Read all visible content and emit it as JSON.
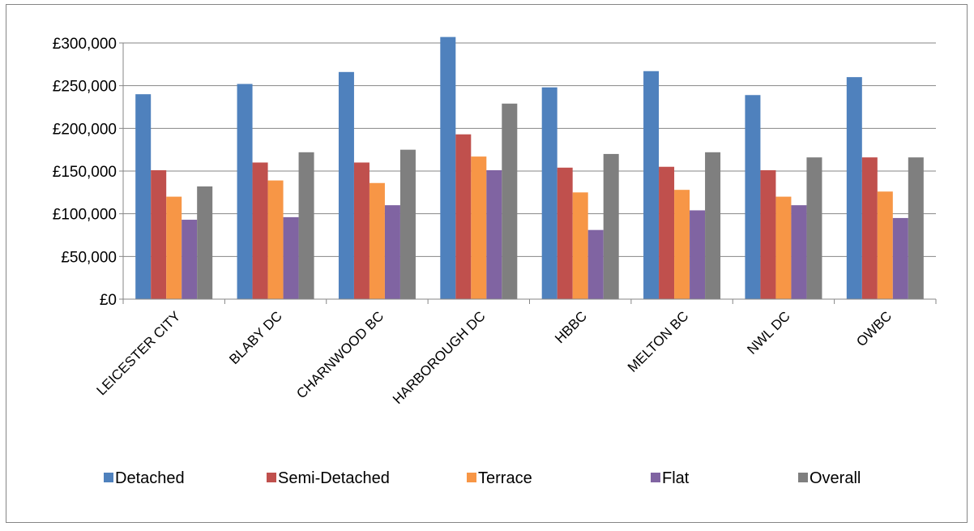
{
  "chart_data": {
    "type": "bar",
    "categories": [
      "LEICESTER CITY",
      "BLABY DC",
      "CHARNWOOD BC",
      "HARBOROUGH DC",
      "HBBC",
      "MELTON BC",
      "NWL DC",
      "OWBC"
    ],
    "series": [
      {
        "name": "Detached",
        "color": "#4F81BD",
        "values": [
          240000,
          252000,
          266000,
          307000,
          248000,
          267000,
          239000,
          260000
        ]
      },
      {
        "name": "Semi-Detached",
        "color": "#C0504D",
        "values": [
          151000,
          160000,
          160000,
          193000,
          154000,
          155000,
          151000,
          166000
        ]
      },
      {
        "name": "Terrace",
        "color": "#F79646",
        "values": [
          120000,
          139000,
          136000,
          167000,
          125000,
          128000,
          120000,
          126000
        ]
      },
      {
        "name": "Flat",
        "color": "#8064A2",
        "values": [
          93000,
          96000,
          110000,
          151000,
          81000,
          104000,
          110000,
          95000
        ]
      },
      {
        "name": "Overall",
        "color": "#7F7F7F",
        "values": [
          132000,
          172000,
          175000,
          229000,
          170000,
          172000,
          166000,
          166000
        ]
      }
    ],
    "yticks": [
      "£0",
      "£50,000",
      "£100,000",
      "£150,000",
      "£200,000",
      "£250,000",
      "£300,000"
    ],
    "ylim": [
      0,
      300000
    ],
    "grid": true,
    "legend_position": "bottom",
    "title": "",
    "xlabel": "",
    "ylabel": ""
  }
}
